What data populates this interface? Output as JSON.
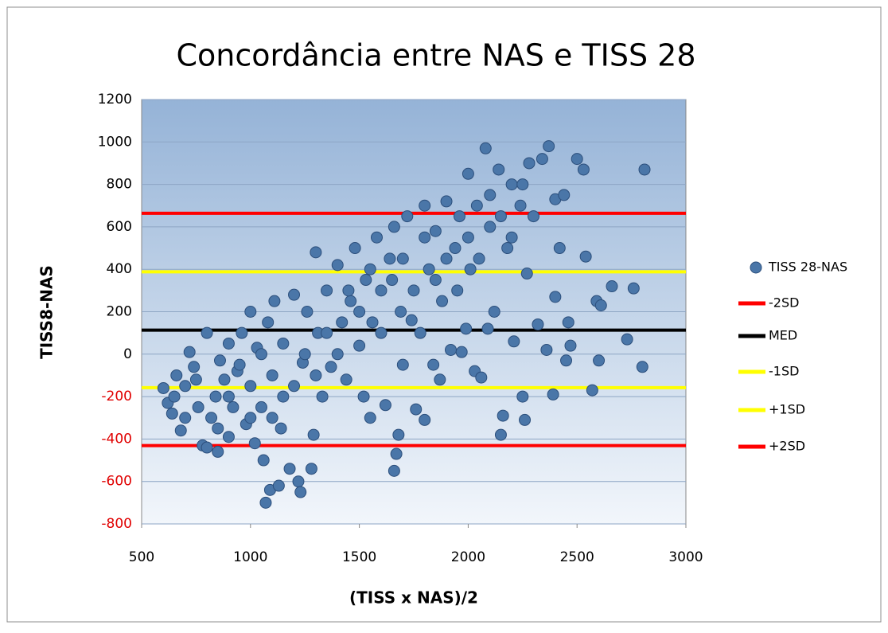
{
  "chart_data": {
    "type": "scatter",
    "title": "Concordância entre NAS e TISS 28",
    "x_label": "(TISS x NAS)/2",
    "y_label": "TISS8-NAS",
    "xlim": [
      500,
      3000
    ],
    "xticks": [
      500,
      1000,
      1500,
      2000,
      2500,
      3000
    ],
    "ylim": [
      -800,
      1200
    ],
    "yticks": [
      -800,
      -600,
      -400,
      -200,
      0,
      200,
      400,
      600,
      800,
      1000,
      1200
    ],
    "grid": true,
    "legend": "right",
    "negative_tick_color": "#e00000",
    "series": [
      {
        "name": "TISS 28-NAS",
        "color": "#4a76a8",
        "type": "scatter",
        "x": [
          600,
          620,
          640,
          660,
          680,
          700,
          720,
          740,
          760,
          780,
          800,
          800,
          820,
          840,
          850,
          860,
          880,
          900,
          900,
          920,
          940,
          960,
          980,
          1000,
          1000,
          1020,
          1030,
          1050,
          1060,
          1070,
          1080,
          1090,
          1100,
          1110,
          1130,
          1140,
          1150,
          1180,
          1200,
          1200,
          1220,
          1230,
          1240,
          1260,
          1280,
          1290,
          1300,
          1310,
          1330,
          1350,
          1370,
          1400,
          1420,
          1440,
          1460,
          1480,
          1500,
          1520,
          1530,
          1550,
          1560,
          1580,
          1600,
          1620,
          1640,
          1660,
          1660,
          1670,
          1680,
          1690,
          1700,
          1720,
          1740,
          1760,
          1780,
          1800,
          1800,
          1820,
          1840,
          1850,
          1870,
          1880,
          1900,
          1920,
          1940,
          1960,
          1970,
          1990,
          2000,
          2010,
          2030,
          2040,
          2060,
          2080,
          2090,
          2100,
          2120,
          2140,
          2150,
          2160,
          2180,
          2200,
          2210,
          2240,
          2250,
          2260,
          2270,
          2280,
          2300,
          2320,
          2340,
          2360,
          2370,
          2390,
          2400,
          2400,
          2420,
          2440,
          2450,
          2460,
          2470,
          2500,
          2530,
          2540,
          2570,
          2590,
          2600,
          2610,
          2660,
          2730,
          2760,
          2800,
          2810,
          1100,
          1150,
          1250,
          1300,
          1350,
          1400,
          1450,
          1500,
          1550,
          1600,
          1650,
          1700,
          1750,
          1800,
          1850,
          1900,
          1950,
          2000,
          2050,
          2100,
          2150,
          2200,
          2250,
          900,
          950,
          1000,
          1050,
          700,
          650,
          750,
          850
        ],
        "values": [
          -160,
          -230,
          -280,
          -100,
          -360,
          -150,
          10,
          -60,
          -250,
          -430,
          -440,
          100,
          -300,
          -200,
          -460,
          -30,
          -120,
          -390,
          50,
          -250,
          -80,
          100,
          -330,
          200,
          -150,
          -420,
          30,
          -250,
          -500,
          -700,
          150,
          -640,
          -100,
          250,
          -620,
          -350,
          50,
          -540,
          280,
          -150,
          -600,
          -650,
          -40,
          200,
          -540,
          -380,
          480,
          100,
          -200,
          300,
          -60,
          420,
          150,
          -120,
          250,
          500,
          40,
          -200,
          350,
          -300,
          150,
          550,
          300,
          -240,
          450,
          600,
          -550,
          -470,
          -380,
          200,
          -50,
          650,
          160,
          -260,
          100,
          700,
          -310,
          400,
          -50,
          580,
          -120,
          250,
          720,
          20,
          500,
          650,
          10,
          120,
          850,
          400,
          -80,
          700,
          -110,
          970,
          120,
          600,
          200,
          870,
          -380,
          -290,
          500,
          800,
          60,
          700,
          -200,
          -310,
          380,
          900,
          650,
          140,
          920,
          20,
          980,
          -190,
          730,
          270,
          500,
          750,
          -30,
          150,
          40,
          920,
          870,
          460,
          -170,
          250,
          -30,
          230,
          320,
          70,
          310,
          -60,
          870,
          -300,
          -200,
          0,
          -100,
          100,
          0,
          300,
          200,
          400,
          100,
          350,
          450,
          300,
          550,
          350,
          450,
          300,
          550,
          450,
          750,
          650,
          550,
          800,
          -200,
          -50,
          -300,
          0,
          -300,
          -200,
          -120,
          -350
        ]
      },
      {
        "name": "-2SD",
        "color": "#ff0000",
        "type": "line",
        "x": [
          500,
          3000
        ],
        "values": [
          664,
          664
        ]
      },
      {
        "name": "MED",
        "color": "#000000",
        "type": "line",
        "x": [
          500,
          3000
        ],
        "values": [
          113,
          113
        ]
      },
      {
        "name": "-1SD",
        "color": "#ffff00",
        "type": "line",
        "x": [
          500,
          3000
        ],
        "values": [
          388,
          388
        ]
      },
      {
        "name": "+1SD",
        "color": "#ffff00",
        "type": "line",
        "x": [
          500,
          3000
        ],
        "values": [
          -158,
          -158
        ]
      },
      {
        "name": "+2SD",
        "color": "#ff0000",
        "type": "line",
        "x": [
          500,
          3000
        ],
        "values": [
          -431,
          -431
        ]
      }
    ]
  }
}
